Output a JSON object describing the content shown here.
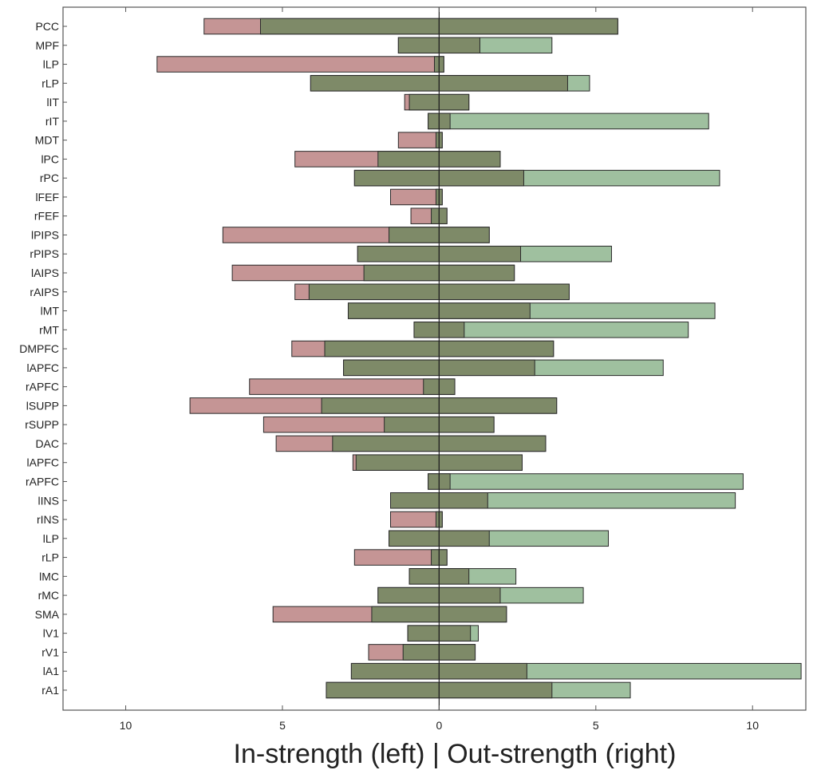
{
  "chart_data": {
    "type": "bar",
    "orientation": "horizontal-diverging",
    "xlabel": "In-strength (left) | Out-strength (right)",
    "x_tick_labels": [
      "10",
      "5",
      "0",
      "5",
      "10"
    ],
    "x_tick_values": [
      -10,
      -5,
      0,
      5,
      10
    ],
    "xlim": [
      -12,
      11.7
    ],
    "grid": false,
    "categories": [
      "PCC",
      "MPF",
      "lLP",
      "rLP",
      "lIT",
      "rIT",
      "MDT",
      "lPC",
      "rPC",
      "lFEF",
      "rFEF",
      "lPIPS",
      "rPIPS",
      "lAIPS",
      "rAIPS",
      "lMT",
      "rMT",
      "DMPFC",
      "lAPFC",
      "rAPFC",
      "lSUPP",
      "rSUPP",
      "DAC",
      "lAPFC",
      "rAPFC",
      "lINS",
      "rINS",
      "lLP",
      "rLP",
      "lMC",
      "rMC",
      "SMA",
      "lV1",
      "rV1",
      "lA1",
      "rA1"
    ],
    "series": [
      {
        "key": "in",
        "values": [
          7.5,
          1.3,
          9.0,
          4.1,
          1.1,
          0.35,
          1.3,
          4.6,
          2.7,
          1.55,
          0.9,
          6.9,
          2.6,
          6.6,
          4.6,
          2.9,
          0.8,
          4.7,
          3.05,
          6.05,
          7.95,
          5.6,
          5.2,
          2.75,
          0.35,
          1.55,
          1.55,
          1.6,
          2.7,
          0.95,
          1.95,
          5.3,
          1.0,
          2.25,
          2.8,
          3.6
        ]
      },
      {
        "key": "out",
        "values": [
          5.7,
          3.6,
          0.15,
          4.8,
          0.95,
          8.6,
          0.1,
          1.95,
          8.95,
          0.1,
          0.25,
          1.6,
          5.5,
          2.4,
          4.15,
          8.8,
          7.95,
          3.65,
          7.15,
          0.5,
          3.75,
          1.75,
          3.4,
          2.65,
          9.7,
          9.45,
          0.1,
          5.4,
          0.25,
          2.45,
          4.6,
          2.15,
          1.25,
          1.15,
          11.55,
          6.1
        ]
      }
    ],
    "colors": {
      "in": "#c08c8c",
      "out": "#9fc09f",
      "overlap": "#7e8a68",
      "edge": "#2a2a2a",
      "axis": "#555555"
    }
  }
}
